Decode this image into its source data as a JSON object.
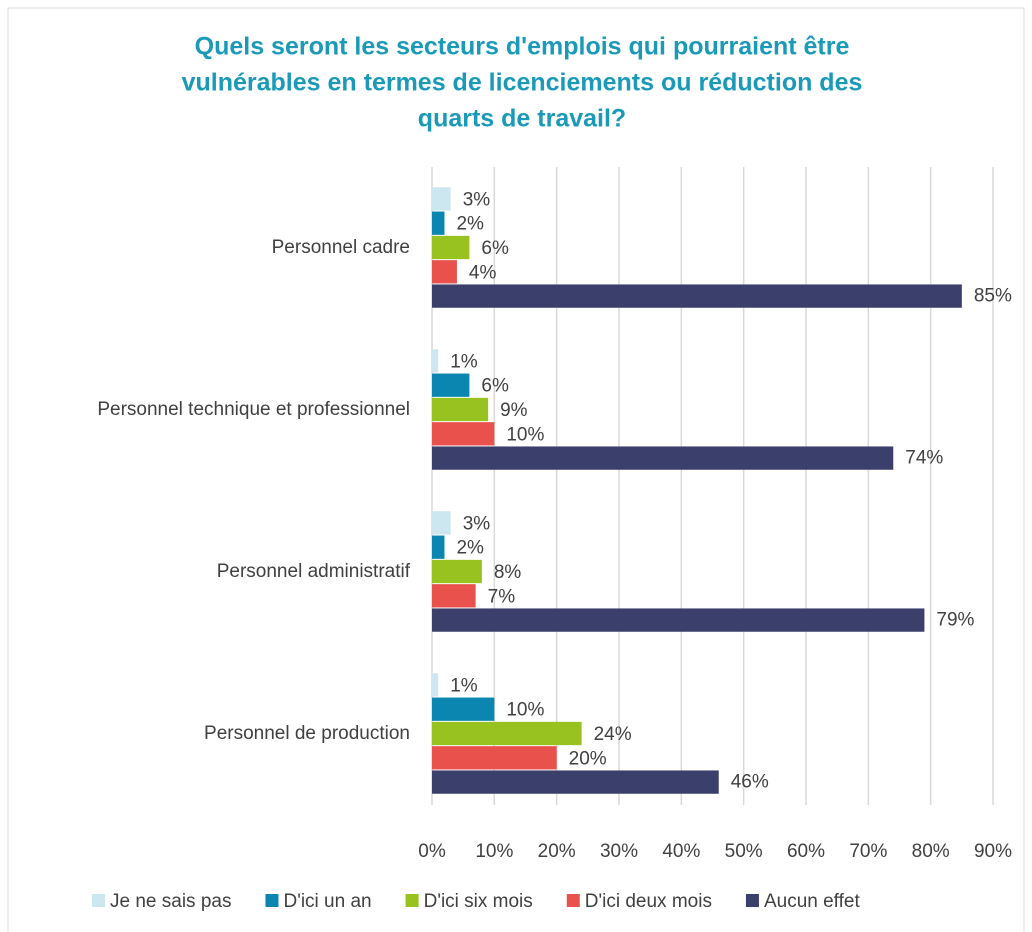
{
  "chart_data": {
    "type": "hbar",
    "title": [
      "Quels seront les secteurs d'emplois qui pourraient être",
      "vulnérables en termes de licenciements ou réduction des",
      "quarts de travail?"
    ],
    "categories": [
      "Personnel cadre",
      "Personnel technique et professionnel",
      "Personnel administratif",
      "Personnel de production"
    ],
    "series": [
      {
        "name": "Je ne sais pas",
        "color": "#cde7f0",
        "values": [
          3,
          1,
          3,
          1
        ],
        "value_labels": [
          "3%",
          "1%",
          "3%",
          "1%"
        ]
      },
      {
        "name": "D'ici un an",
        "color": "#0a86b0",
        "values": [
          2,
          6,
          2,
          10
        ],
        "value_labels": [
          "2%",
          "6%",
          "2%",
          "10%"
        ]
      },
      {
        "name": "D'ici six mois",
        "color": "#97c21f",
        "values": [
          6,
          9,
          8,
          24
        ],
        "value_labels": [
          "6%",
          "9%",
          "8%",
          "24%"
        ]
      },
      {
        "name": "D'ici deux mois",
        "color": "#e9524c",
        "values": [
          4,
          10,
          7,
          20
        ],
        "value_labels": [
          "4%",
          "10%",
          "7%",
          "20%"
        ]
      },
      {
        "name": "Aucun effet",
        "color": "#3b3f6b",
        "values": [
          85,
          74,
          79,
          46
        ],
        "value_labels": [
          "85%",
          "74%",
          "79%",
          "46%"
        ]
      }
    ],
    "xlim": [
      0,
      90
    ],
    "xticks": [
      {
        "value": 0,
        "label": "0%"
      },
      {
        "value": 10,
        "label": "10%"
      },
      {
        "value": 20,
        "label": "20%"
      },
      {
        "value": 30,
        "label": "30%"
      },
      {
        "value": 40,
        "label": "40%"
      },
      {
        "value": 50,
        "label": "50%"
      },
      {
        "value": 60,
        "label": "60%"
      },
      {
        "value": 70,
        "label": "70%"
      },
      {
        "value": 80,
        "label": "80%"
      },
      {
        "value": 90,
        "label": "90%"
      }
    ],
    "grid": true,
    "legend": "bottom"
  }
}
